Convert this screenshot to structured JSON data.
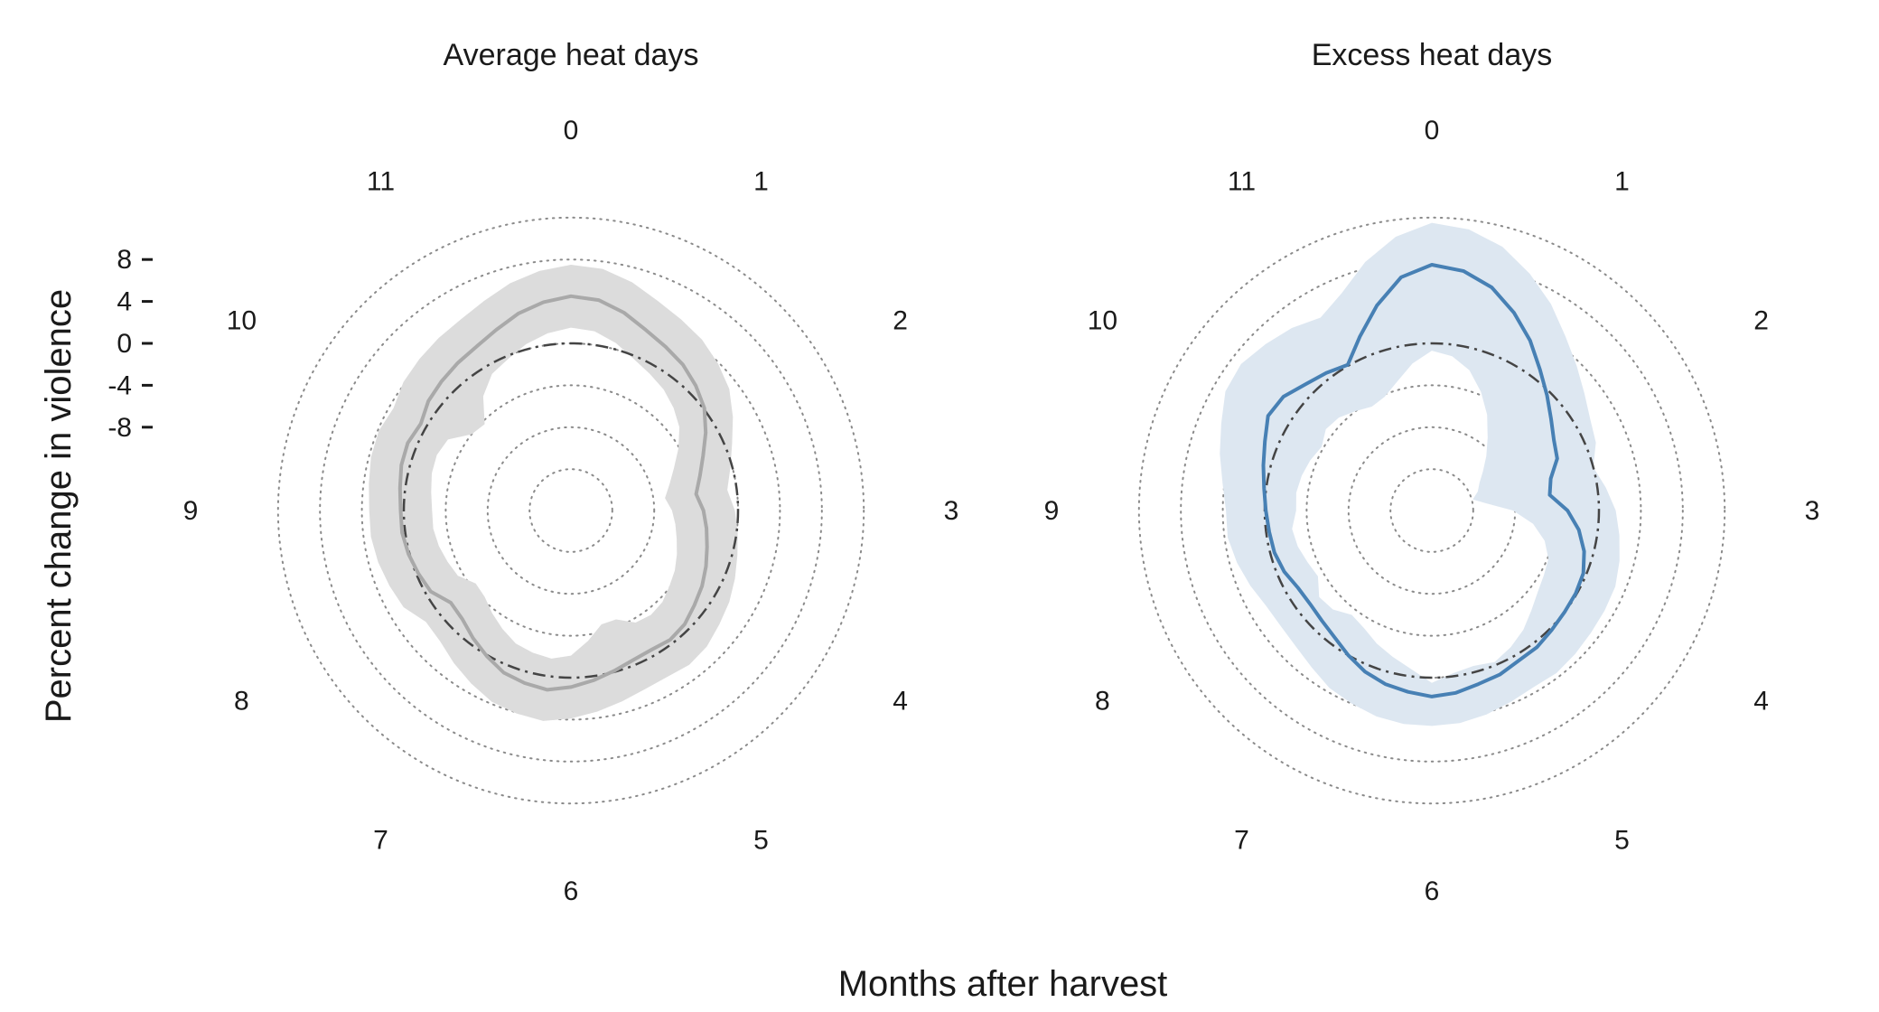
{
  "figure": {
    "xlabel": "Months after harvest",
    "ylabel": "Percent change in violence"
  },
  "chart_data": [
    {
      "type": "radar",
      "title": "Average heat days",
      "categories": [
        "0",
        "1",
        "2",
        "3",
        "4",
        "5",
        "6",
        "7",
        "8",
        "9",
        "10",
        "11"
      ],
      "rlim": [
        -20,
        12
      ],
      "rticks": [
        8,
        4,
        0,
        -4,
        -8
      ],
      "rtick_labels": [
        "8",
        "4",
        "0",
        "-4",
        "-8"
      ],
      "grid_levels": [
        -16,
        -12,
        -8,
        -4,
        0,
        4,
        8,
        12
      ],
      "baseline": 0,
      "x": [
        0,
        0.25,
        0.5,
        0.75,
        1,
        1.25,
        1.5,
        1.75,
        2,
        2.25,
        2.5,
        2.75,
        3,
        3.25,
        3.5,
        3.75,
        4,
        4.25,
        4.5,
        4.75,
        5,
        5.25,
        5.5,
        5.75,
        6,
        6.25,
        6.5,
        6.75,
        7,
        7.25,
        7.5,
        7.75,
        8,
        8.25,
        8.5,
        8.75,
        9,
        9.25,
        9.5,
        9.75,
        10,
        10.25,
        10.5,
        10.75,
        11,
        11.25,
        11.5,
        11.75
      ],
      "series": [
        {
          "values": [
            4.5,
            4.3,
            3.6,
            2.7,
            2.1,
            1.6,
            0.9,
            0.1,
            -1.1,
            -2.3,
            -3.2,
            -3.9,
            -3.3,
            -2.9,
            -2.5,
            -2.0,
            -1.5,
            -1.1,
            -0.6,
            -0.4,
            -0.6,
            -0.5,
            -0.1,
            0.4,
            0.9,
            1.3,
            1.1,
            0.8,
            0.1,
            -0.6,
            -1.3,
            -1.5,
            -0.5,
            -0.2,
            0.1,
            0.3,
            0.3,
            0.5,
            0.8,
            0.9,
            0.6,
            1.2,
            1.5,
            1.8,
            2.1,
            2.7,
            3.5,
            4.1
          ],
          "lower": [
            1.5,
            1.3,
            0.6,
            -0.3,
            -0.9,
            -1.4,
            -2.1,
            -2.9,
            -4.1,
            -5.3,
            -6.2,
            -6.9,
            -6.3,
            -5.9,
            -5.5,
            -5.0,
            -4.5,
            -4.1,
            -3.6,
            -3.4,
            -3.6,
            -4.7,
            -4.7,
            -3.4,
            -2.1,
            -1.7,
            -1.9,
            -2.2,
            -2.9,
            -3.6,
            -4.3,
            -4.5,
            -3.5,
            -3.2,
            -2.9,
            -2.7,
            -2.7,
            -2.5,
            -2.2,
            -2.1,
            -2.4,
            -4.0,
            -4.3,
            -2.2,
            -0.9,
            -0.3,
            0.5,
            1.1
          ],
          "upper": [
            7.5,
            7.3,
            6.6,
            5.7,
            5.1,
            4.6,
            3.9,
            3.1,
            1.9,
            0.7,
            -0.2,
            -0.9,
            -0.3,
            0.1,
            0.5,
            1.0,
            1.5,
            1.9,
            2.4,
            2.6,
            2.4,
            2.5,
            2.9,
            3.4,
            3.9,
            4.3,
            4.1,
            3.8,
            3.1,
            2.4,
            1.7,
            1.5,
            2.5,
            2.8,
            3.1,
            3.3,
            3.3,
            3.5,
            3.8,
            3.9,
            3.6,
            4.2,
            4.5,
            4.8,
            5.1,
            5.7,
            6.5,
            7.1
          ],
          "color": "#a9a9a9",
          "ci_color": "#dcdcdc"
        }
      ]
    },
    {
      "type": "radar",
      "title": "Excess heat days",
      "categories": [
        "0",
        "1",
        "2",
        "3",
        "4",
        "5",
        "6",
        "7",
        "8",
        "9",
        "10",
        "11"
      ],
      "rlim": [
        -20,
        12
      ],
      "rticks": [
        8,
        4,
        0,
        -4,
        -8
      ],
      "grid_levels": [
        -16,
        -12,
        -8,
        -4,
        0,
        4,
        8,
        12
      ],
      "baseline": 0,
      "x": [
        0,
        0.25,
        0.5,
        0.75,
        1,
        1.25,
        1.5,
        1.75,
        2,
        2.25,
        2.5,
        2.75,
        3,
        3.25,
        3.5,
        3.75,
        4,
        4.25,
        4.5,
        4.75,
        5,
        5.25,
        5.5,
        5.75,
        6,
        6.25,
        6.5,
        6.75,
        7,
        7.25,
        7.5,
        7.75,
        8,
        8.25,
        8.5,
        8.75,
        9,
        9.25,
        9.5,
        9.75,
        10,
        10.25,
        10.5,
        10.75,
        11,
        11.25,
        11.5,
        11.75
      ],
      "series": [
        {
          "values": [
            7.5,
            7.1,
            6.1,
            4.5,
            2.8,
            1.0,
            -0.4,
            -1.6,
            -2.5,
            -3.0,
            -4.2,
            -4.6,
            -3.0,
            -1.8,
            -0.9,
            -0.3,
            -0.1,
            0.0,
            0.2,
            0.5,
            0.6,
            1.0,
            1.2,
            1.6,
            1.8,
            1.5,
            1.2,
            0.7,
            0.0,
            -0.7,
            -1.1,
            -1.3,
            -1.2,
            -0.7,
            -0.4,
            -0.3,
            -0.1,
            0.2,
            0.7,
            1.3,
            2.1,
            1.9,
            1.1,
            0.6,
            0.1,
            2.0,
            4.3,
            6.5
          ],
          "lower": [
            -0.7,
            -1.1,
            -2.1,
            -3.7,
            -5.4,
            -7.2,
            -8.6,
            -9.8,
            -10.7,
            -11.2,
            -11.9,
            -10.7,
            -8.2,
            -6.2,
            -4.8,
            -3.9,
            -3.6,
            -3.2,
            -2.5,
            -1.6,
            -0.9,
            -0.3,
            -0.6,
            -0.3,
            0.5,
            -0.7,
            -1.5,
            -2.2,
            -3.0,
            -3.4,
            -2.6,
            -2.4,
            -3.4,
            -3.1,
            -2.7,
            -2.5,
            -3.0,
            -2.9,
            -3.1,
            -3.4,
            -3.8,
            -3.2,
            -3.4,
            -4.0,
            -4.5,
            -4.2,
            -3.2,
            -1.8
          ],
          "upper": [
            11.5,
            11.1,
            10.1,
            8.5,
            6.8,
            5.0,
            3.6,
            2.4,
            1.5,
            1.0,
            0.0,
            0.8,
            1.6,
            2.1,
            2.6,
            3.0,
            3.1,
            3.2,
            3.4,
            3.6,
            3.5,
            3.8,
            4.2,
            4.5,
            4.6,
            4.6,
            4.4,
            4.0,
            3.6,
            2.9,
            2.4,
            2.2,
            2.3,
            2.8,
            3.3,
            3.7,
            3.7,
            4.2,
            5.0,
            5.8,
            6.8,
            7.0,
            6.5,
            6.0,
            5.3,
            6.5,
            8.6,
            10.4
          ],
          "color": "#4780b4",
          "ci_color": "#dde7f1"
        }
      ]
    }
  ]
}
